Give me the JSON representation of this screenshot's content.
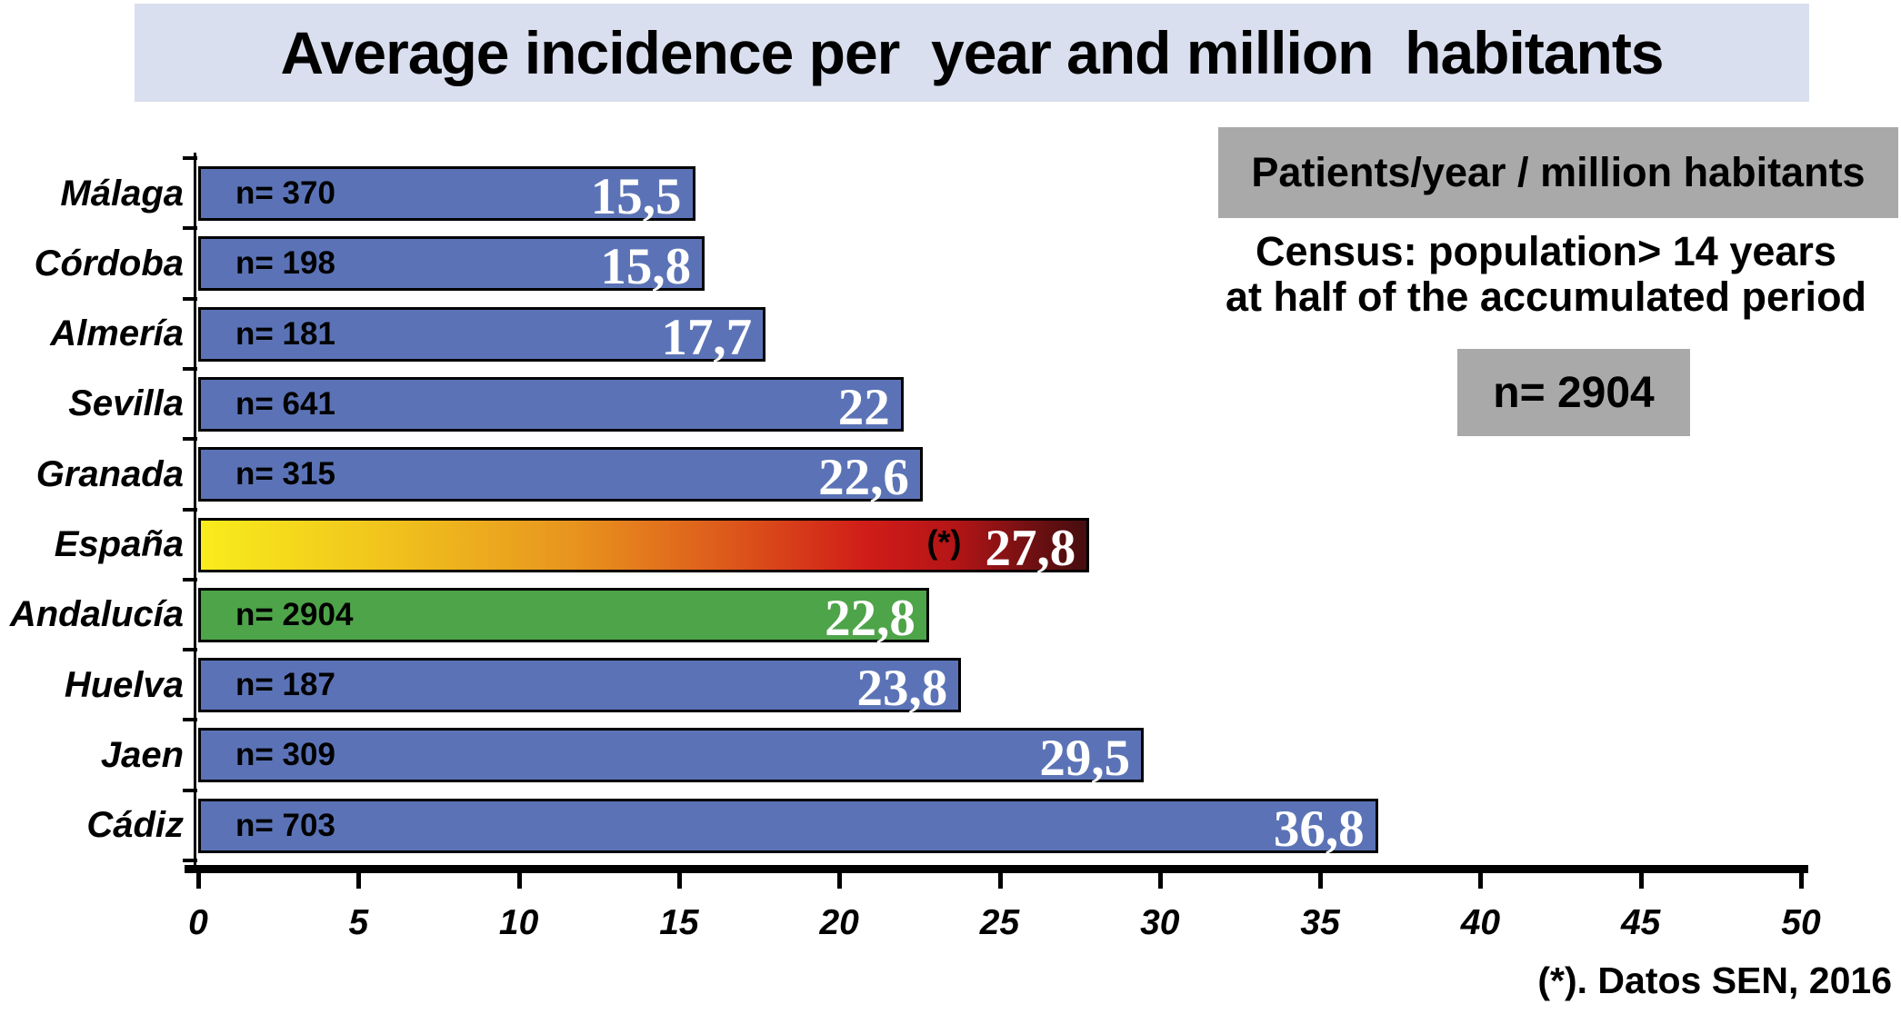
{
  "title": "Average incidence per  year and million  habitants",
  "side_panel": {
    "patients_box": "Patients/year / million habitants",
    "census_line1": "Census: population> 14 years",
    "census_line2": "at half of the accumulated period",
    "n_total_box": "n= 2904"
  },
  "footnote": "(*). Datos SEN, 2016",
  "colors": {
    "title_bg": "#d9dfee",
    "gray_box": "#a9a9a9",
    "bar_blue": "#5b73b6",
    "bar_green": "#4ea449",
    "bar_border": "#000000",
    "value_text": "#ffffff",
    "spain_gradient": [
      "#f8ec1c",
      "#f0c11d",
      "#e8941e",
      "#dd571b",
      "#d01d18",
      "#b51517",
      "#6f1012",
      "#460d0f"
    ]
  },
  "chart_data": {
    "type": "bar",
    "orientation": "horizontal",
    "title": "Average incidence per year and million habitants",
    "xlabel": "Patients/year/million habitants",
    "ylabel": "",
    "xlim": [
      0,
      50
    ],
    "xticks": [
      0,
      5,
      10,
      15,
      20,
      25,
      30,
      35,
      40,
      45,
      50
    ],
    "grid": false,
    "legend": false,
    "rows": [
      {
        "label": "Málaga",
        "n_label": "n= 370",
        "value": 15.5,
        "display": "15,5",
        "color_key": "blue",
        "prefix": ""
      },
      {
        "label": "Córdoba",
        "n_label": "n= 198",
        "value": 15.8,
        "display": "15,8",
        "color_key": "blue",
        "prefix": ""
      },
      {
        "label": "Almería",
        "n_label": "n= 181",
        "value": 17.7,
        "display": "17,7",
        "color_key": "blue",
        "prefix": ""
      },
      {
        "label": "Sevilla",
        "n_label": "n= 641",
        "value": 22,
        "display": "22",
        "color_key": "blue",
        "prefix": ""
      },
      {
        "label": "Granada",
        "n_label": "n= 315",
        "value": 22.6,
        "display": "22,6",
        "color_key": "blue",
        "prefix": ""
      },
      {
        "label": "España",
        "n_label": "",
        "value": 27.8,
        "display": "27,8",
        "color_key": "spain",
        "prefix": "(*)"
      },
      {
        "label": "Andalucía",
        "n_label": "n= 2904",
        "value": 22.8,
        "display": "22,8",
        "color_key": "green",
        "prefix": ""
      },
      {
        "label": "Huelva",
        "n_label": "n= 187",
        "value": 23.8,
        "display": "23,8",
        "color_key": "blue",
        "prefix": ""
      },
      {
        "label": "Jaen",
        "n_label": "n= 309",
        "value": 29.5,
        "display": "29,5",
        "color_key": "blue",
        "prefix": ""
      },
      {
        "label": "Cádiz",
        "n_label": "n= 703",
        "value": 36.8,
        "display": "36,8",
        "color_key": "blue",
        "prefix": ""
      }
    ]
  }
}
